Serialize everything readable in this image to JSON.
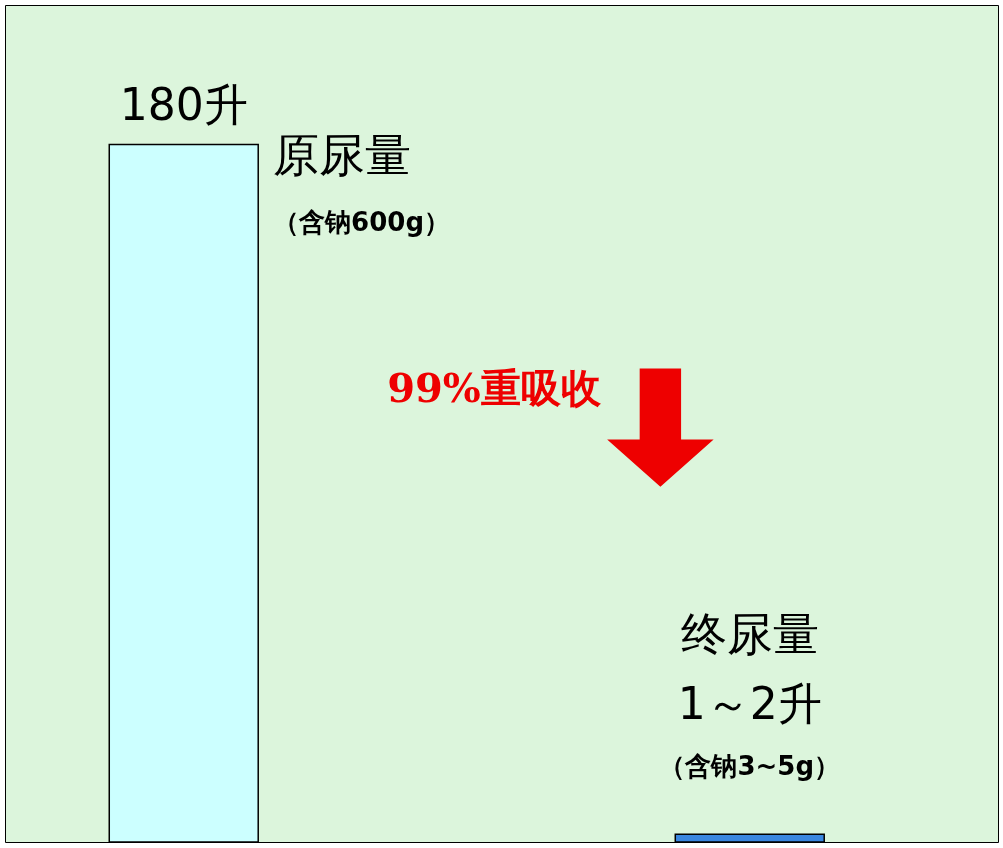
{
  "chart_data": {
    "type": "bar",
    "categories": [
      "原尿量",
      "终尿量"
    ],
    "values": [
      180,
      2
    ],
    "colors": [
      "#ccffff",
      "#3a86e0"
    ],
    "value_labels": [
      "180升",
      "1～2升"
    ],
    "annotations": [
      "（含钠600g）",
      "（含钠3~5g）",
      "99%重吸收"
    ]
  }
}
